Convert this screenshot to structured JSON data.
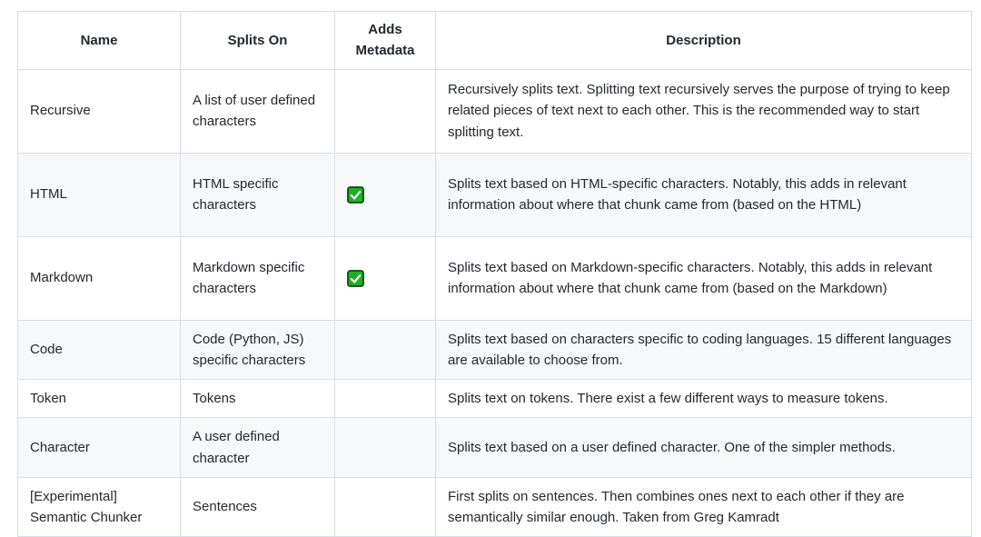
{
  "table": {
    "columns": {
      "name": "Name",
      "splits_on": "Splits On",
      "adds_metadata": "Adds Metadata",
      "description": "Description"
    },
    "rows": [
      {
        "name": "Recursive",
        "splits_on": "A list of user defined characters",
        "adds_metadata": false,
        "description": "Recursively splits text. Splitting text recursively serves the purpose of trying to keep related pieces of text next to each other. This is the recommended way to start splitting text.",
        "size": "tall"
      },
      {
        "name": "HTML",
        "splits_on": "HTML specific characters",
        "adds_metadata": true,
        "description": "Splits text based on HTML-specific characters. Notably, this adds in relevant information about where that chunk came from (based on the HTML)",
        "size": "tall"
      },
      {
        "name": "Markdown",
        "splits_on": "Markdown specific characters",
        "adds_metadata": true,
        "description": "Splits text based on Markdown-specific characters. Notably, this adds in relevant information about where that chunk came from (based on the Markdown)",
        "size": "tall"
      },
      {
        "name": "Code",
        "splits_on": "Code (Python, JS) specific characters",
        "adds_metadata": false,
        "description": "Splits text based on characters specific to coding languages. 15 different languages are available to choose from.",
        "size": "2l"
      },
      {
        "name": "Token",
        "splits_on": "Tokens",
        "adds_metadata": false,
        "description": "Splits text on tokens. There exist a few different ways to measure tokens.",
        "size": "1l"
      },
      {
        "name": "Character",
        "splits_on": "A user defined character",
        "adds_metadata": false,
        "description": "Splits text based on a user defined character. One of the simpler methods.",
        "size": "2l"
      },
      {
        "name": "[Experimental] Semantic Chunker",
        "splits_on": "Sentences",
        "adds_metadata": false,
        "description": "First splits on sentences. Then combines ones next to each other if they are semantically similar enough. Taken from Greg Kamradt",
        "size": "2l"
      }
    ],
    "colors": {
      "check_fill": "#1fb024",
      "check_border": "#0f4712",
      "check_mark": "#ffffff",
      "row_alt_bg": "#f6f8fa",
      "grid_border": "#d9dee4",
      "text": "#24292f"
    }
  }
}
